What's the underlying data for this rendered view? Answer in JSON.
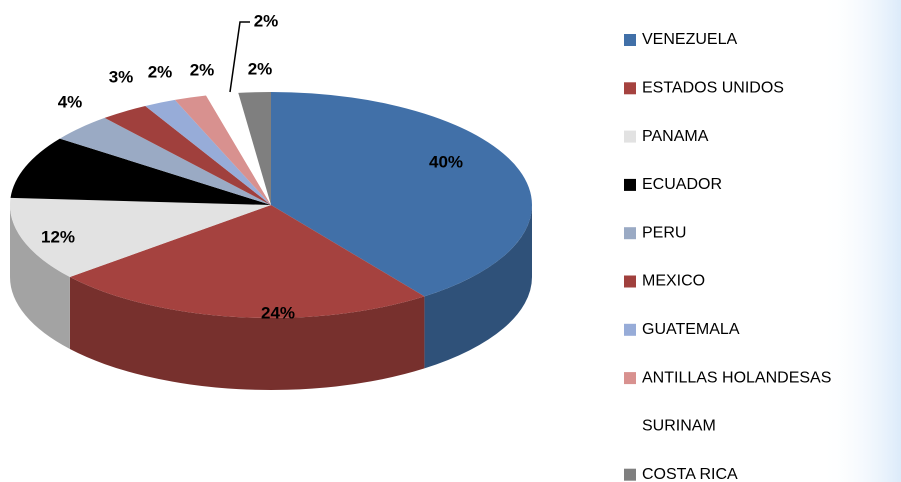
{
  "chart_data": {
    "type": "pie",
    "categories": [
      "VENEZUELA",
      "ESTADOS UNIDOS",
      "PANAMA",
      "ECUADOR",
      "PERU",
      "MEXICO",
      "GUATEMALA",
      "ANTILLAS HOLANDESAS",
      "SURINAM",
      "COSTA RICA"
    ],
    "values": [
      40,
      24,
      12,
      9,
      4,
      3,
      2,
      2,
      2,
      2
    ],
    "value_labels": [
      "40%",
      "24%",
      "12%",
      null,
      "4%",
      "3%",
      "2%",
      "2%",
      "2%",
      "2%"
    ],
    "colors": [
      "#4170a8",
      "#a5423f",
      "#e2e2e2",
      "#000000",
      "#9aaac4",
      "#a0403d",
      "#97acd8",
      "#d8918f",
      "#ffffff",
      "#7f7f7f"
    ],
    "legend": "right"
  }
}
